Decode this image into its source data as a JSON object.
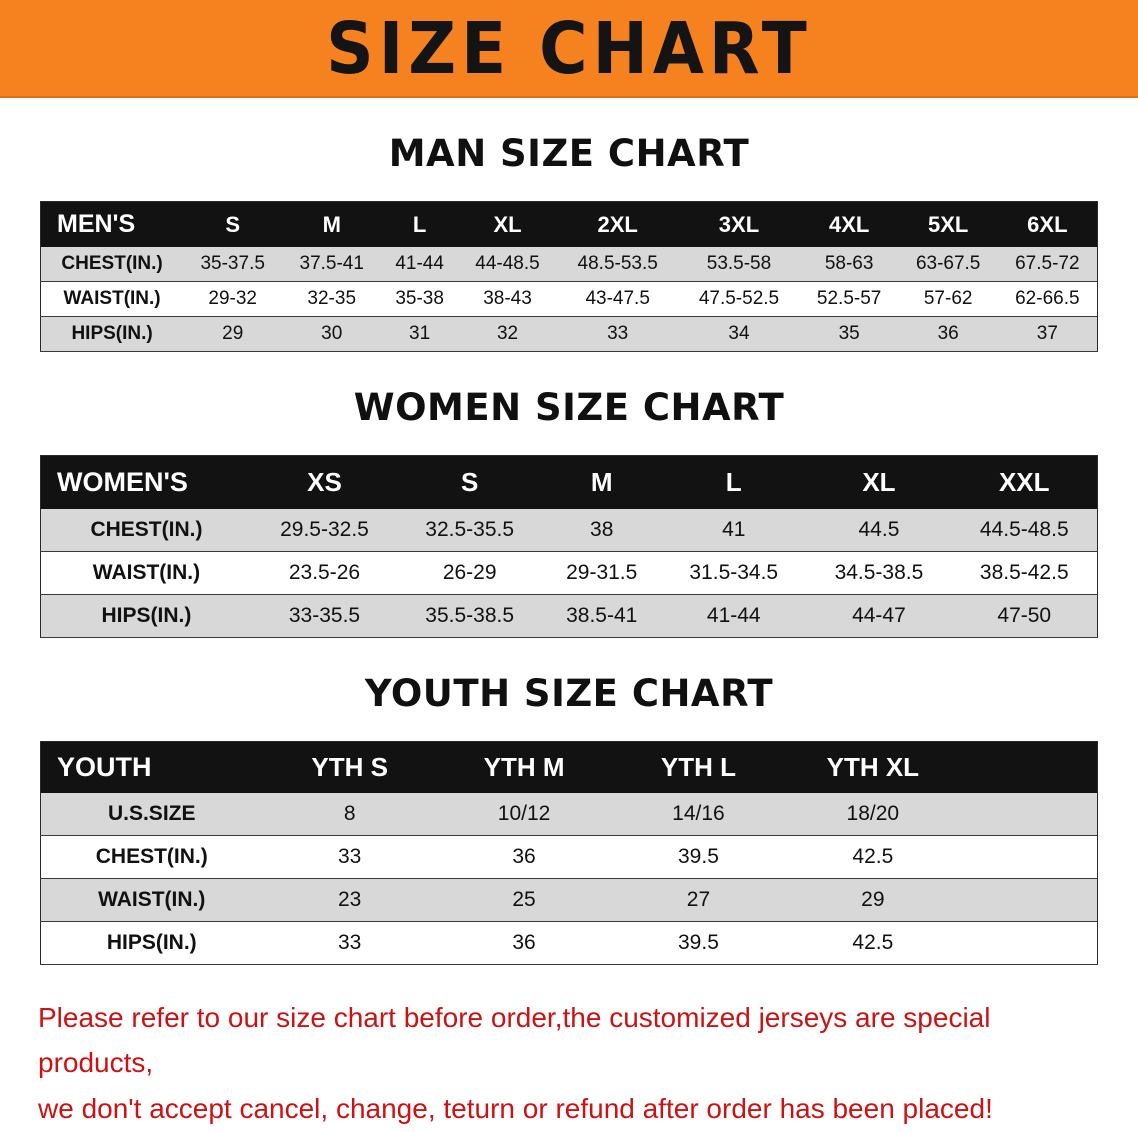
{
  "banner": {
    "title": "SIZE CHART"
  },
  "colors": {
    "banner_bg": "#f6821f",
    "banner_text": "#141414",
    "table_header_bg": "#121212",
    "table_header_text": "#ffffff",
    "row_alt": "#d8d8d8",
    "disclaimer_text": "#cc1212"
  },
  "sections": [
    {
      "id": "men",
      "heading": "MAN SIZE CHART",
      "table": {
        "header": [
          "MEN'S",
          "S",
          "M",
          "L",
          "XL",
          "2XL",
          "3XL",
          "4XL",
          "5XL",
          "6XL"
        ],
        "rows": [
          [
            "CHEST(IN.)",
            "35-37.5",
            "37.5-41",
            "41-44",
            "44-48.5",
            "48.5-53.5",
            "53.5-58",
            "58-63",
            "63-67.5",
            "67.5-72"
          ],
          [
            "WAIST(IN.)",
            "29-32",
            "32-35",
            "35-38",
            "38-43",
            "43-47.5",
            "47.5-52.5",
            "52.5-57",
            "57-62",
            "62-66.5"
          ],
          [
            "HIPS(IN.)",
            "29",
            "30",
            "31",
            "32",
            "33",
            "34",
            "35",
            "36",
            "37"
          ]
        ]
      }
    },
    {
      "id": "women",
      "heading": "WOMEN SIZE CHART",
      "table": {
        "header": [
          "WOMEN'S",
          "XS",
          "S",
          "M",
          "L",
          "XL",
          "XXL"
        ],
        "rows": [
          [
            "CHEST(IN.)",
            "29.5-32.5",
            "32.5-35.5",
            "38",
            "41",
            "44.5",
            "44.5-48.5"
          ],
          [
            "WAIST(IN.)",
            "23.5-26",
            "26-29",
            "29-31.5",
            "31.5-34.5",
            "34.5-38.5",
            "38.5-42.5"
          ],
          [
            "HIPS(IN.)",
            "33-35.5",
            "35.5-38.5",
            "38.5-41",
            "41-44",
            "44-47",
            "47-50"
          ]
        ]
      }
    },
    {
      "id": "youth",
      "heading": "YOUTH SIZE CHART",
      "table": {
        "header": [
          "YOUTH",
          "YTH S",
          "YTH M",
          "YTH L",
          "YTH XL"
        ],
        "rows": [
          [
            "U.S.SIZE",
            "8",
            "10/12",
            "14/16",
            "18/20"
          ],
          [
            "CHEST(IN.)",
            "33",
            "36",
            "39.5",
            "42.5"
          ],
          [
            "WAIST(IN.)",
            "23",
            "25",
            "27",
            "29"
          ],
          [
            "HIPS(IN.)",
            "33",
            "36",
            "39.5",
            "42.5"
          ]
        ]
      }
    }
  ],
  "disclaimer": {
    "line1": "Please refer to our size chart before order,the customized jerseys are special products,",
    "line2": "we don't accept cancel, change, teturn or refund after order has been placed!"
  }
}
